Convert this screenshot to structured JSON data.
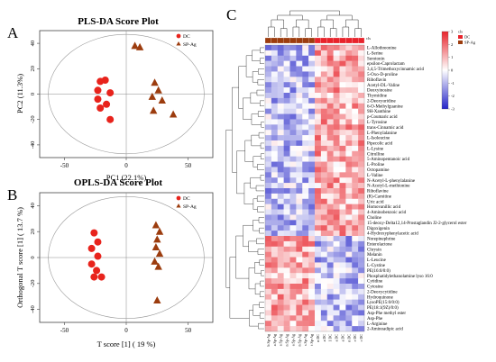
{
  "panel_letters": {
    "a": "A",
    "b": "B",
    "c": "C"
  },
  "colors": {
    "dc": "#e8231c",
    "sp": "#9c3c0e",
    "hm_red": "#e8232b",
    "hm_white": "#ffffff",
    "hm_blue": "#2424c8"
  },
  "chart_data": [
    {
      "type": "scatter",
      "title": "PLS-DA Score Plot",
      "xlabel": "PC1 (22.1%)",
      "ylabel": "PC2 (11.3%)",
      "xlim": [
        -70,
        70
      ],
      "ylim": [
        -50,
        50
      ],
      "xticks": [
        -50,
        0,
        50
      ],
      "yticks": [
        -40,
        -20,
        0,
        20,
        40
      ],
      "legend": [
        "DC",
        "SP-Ag"
      ],
      "legend_placement": "top-right",
      "series": [
        {
          "name": "DC",
          "marker": "circle",
          "points": [
            [
              -17,
              11
            ],
            [
              -21,
              10
            ],
            [
              -23,
              3
            ],
            [
              -13,
              1
            ],
            [
              -23,
              -4
            ],
            [
              -16,
              -8
            ],
            [
              -21,
              -11
            ],
            [
              -13,
              -20
            ]
          ]
        },
        {
          "name": "SP-Ag",
          "marker": "triangle",
          "points": [
            [
              7,
              38
            ],
            [
              11,
              37
            ],
            [
              23,
              9
            ],
            [
              26,
              3
            ],
            [
              21,
              -2
            ],
            [
              29,
              -5
            ],
            [
              22,
              -13
            ],
            [
              38,
              -16
            ]
          ]
        }
      ]
    },
    {
      "type": "scatter",
      "title": "OPLS-DA Score Plot",
      "xlabel": "T score [1] ( 19 %)",
      "ylabel": "Orthogonal T score [1] ( 13.7 %)",
      "xlim": [
        -70,
        70
      ],
      "ylim": [
        -50,
        50
      ],
      "xticks": [
        -50,
        0,
        50
      ],
      "yticks": [
        -40,
        -20,
        0,
        20,
        40
      ],
      "legend": [
        "DC",
        "SP-Ag"
      ],
      "legend_placement": "top-right",
      "series": [
        {
          "name": "DC",
          "marker": "circle",
          "points": [
            [
              -26,
              19
            ],
            [
              -23,
              12
            ],
            [
              -28,
              7
            ],
            [
              -23,
              1
            ],
            [
              -28,
              -5
            ],
            [
              -24,
              -10
            ],
            [
              -20,
              -15
            ],
            [
              -26,
              -15
            ]
          ]
        },
        {
          "name": "SP-Ag",
          "marker": "triangle",
          "points": [
            [
              24,
              25
            ],
            [
              27,
              20
            ],
            [
              25,
              14
            ],
            [
              24,
              8
            ],
            [
              27,
              3
            ],
            [
              23,
              -3
            ],
            [
              26,
              -7
            ],
            [
              25,
              -33
            ]
          ]
        }
      ]
    },
    {
      "type": "heatmap",
      "legend_title": "cls",
      "groups": [
        "DC",
        "SP-Ag"
      ],
      "scale_ticks": [
        3,
        2,
        1,
        0,
        -1,
        -2,
        -3
      ],
      "columns": [
        "b Sp-Ag",
        "a Sp-Ag",
        "a Sp-Ag",
        "n Sp-Ag",
        "a Sp-Ag",
        "n Sp-Ag",
        "s Sp-Ag",
        "t Sp-Ag",
        "n DC",
        "a DC",
        "1 DC",
        "a DC",
        "a DC",
        "n DC",
        "e DC",
        "c DC"
      ],
      "column_groups": [
        "SP-Ag",
        "SP-Ag",
        "SP-Ag",
        "SP-Ag",
        "SP-Ag",
        "SP-Ag",
        "SP-Ag",
        "SP-Ag",
        "DC",
        "DC",
        "DC",
        "DC",
        "DC",
        "DC",
        "DC",
        "DC"
      ],
      "rows": [
        "L-Allothreonine",
        "L-Serine",
        "Serotonin",
        "epsilon-Caprolactam",
        "3,4,5-Trimethoxycinnamic acid",
        "5-Oxo-D-proline",
        "Riboflavin",
        "Acetyl-DL-Valine",
        "Deoxyinosine",
        "Thymidine",
        "2-Deoxyuridine",
        "6-O-Methylguanine",
        "9H-Xanthine",
        "p-Coumaric acid",
        "L-Tyrosine",
        "trans-Cinnamic acid",
        "L-Phenylalanine",
        "L-Isoleucine",
        "Pipecolic acid",
        "L-Lysine",
        "Citrulline",
        "5-Aminopentanoic acid",
        "L-Proline",
        "Octopamine",
        "L-Valine",
        "N-Acetyl-L-phenylalanine",
        "N-Acetyl-L-methionine",
        "Riboflavine",
        "(R)-Carnitine",
        "Uric acid",
        "Homovanillic acid",
        "4-Aminobenzoic acid",
        "Choline",
        "15-deoxy-Delta12,14-Prostaglandin J2-2-glycerol ester",
        "Digoxigenin",
        "4-Hydroxyphenylacetic acid",
        "Norepinephrine",
        "Enterolactone",
        "Chrysin",
        "Melanin",
        "L-Leucine",
        "L-Cystine",
        "PE(16:0/0:0)",
        "Phosphatidylethanolamine lyso 16:0",
        "Cytidine",
        "Cytosine",
        "2-Deoxycytidine",
        "Hydroquinone",
        "LysoPE(15:0/0:0)",
        "PE(18:1(9Z)/0:0)",
        "Asp-Phe methyl ester",
        "Asp-Phe",
        "L-Arginine",
        "2-Aminoadipic acid"
      ]
    }
  ]
}
